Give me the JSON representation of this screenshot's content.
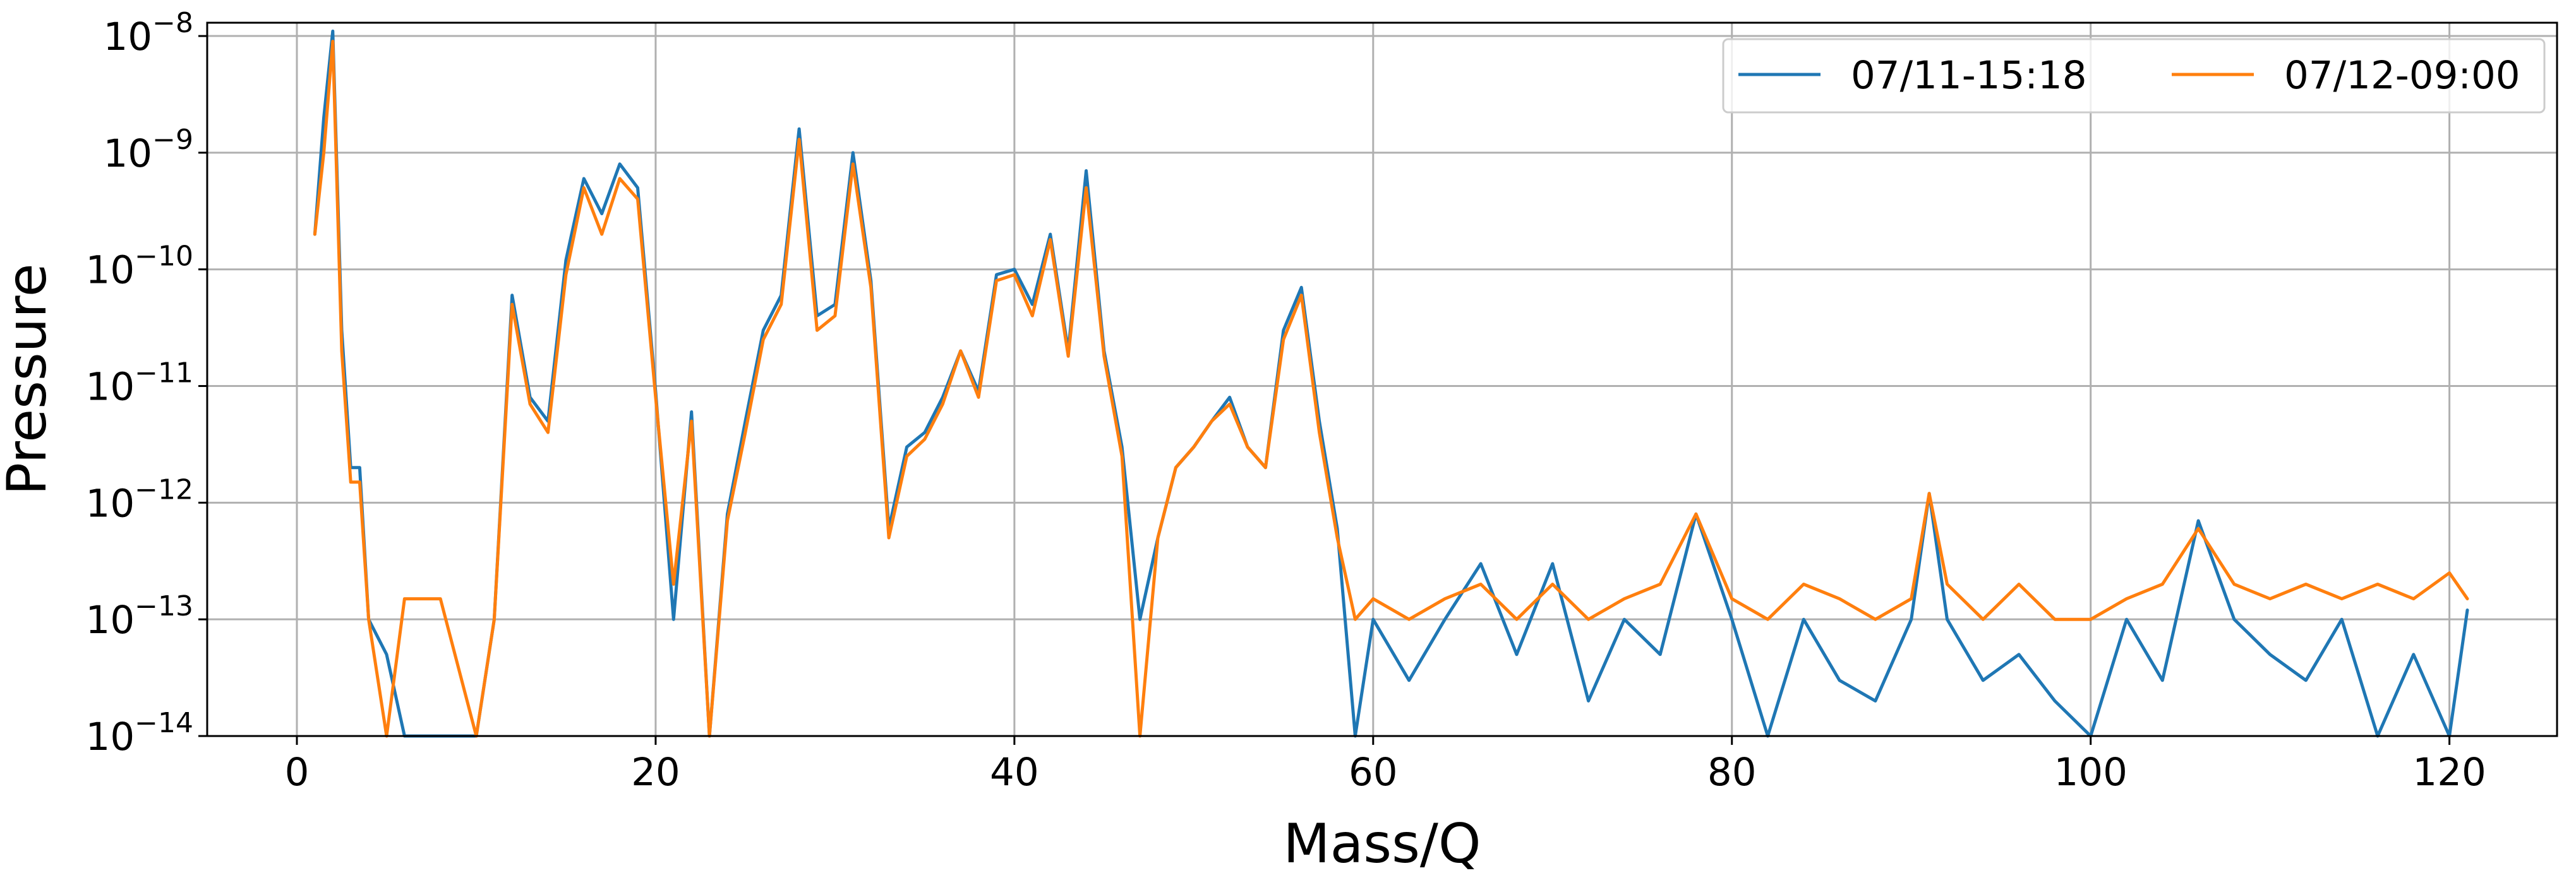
{
  "chart_data": {
    "type": "line",
    "title": "",
    "xlabel": "Mass/Q",
    "ylabel": "Pressure",
    "yscale": "log",
    "xlim": [
      -5,
      126
    ],
    "ylim": [
      1e-14,
      1.3e-08
    ],
    "grid": true,
    "legend_position": "top-right",
    "x_ticks": [
      0,
      20,
      40,
      60,
      80,
      100,
      120
    ],
    "x_tick_labels": [
      "0",
      "20",
      "40",
      "60",
      "80",
      "100",
      "120"
    ],
    "y_ticks": [
      1e-14,
      1e-13,
      1e-12,
      1e-11,
      1e-10,
      1e-09,
      1e-08
    ],
    "y_tick_labels": [
      {
        "base": "10",
        "exp": "−14"
      },
      {
        "base": "10",
        "exp": "−13"
      },
      {
        "base": "10",
        "exp": "−12"
      },
      {
        "base": "10",
        "exp": "−11"
      },
      {
        "base": "10",
        "exp": "−10"
      },
      {
        "base": "10",
        "exp": "−9"
      },
      {
        "base": "10",
        "exp": "−8"
      }
    ],
    "series": [
      {
        "name": "07/11-15:18",
        "color": "#1f77b4",
        "x": [
          1,
          1.5,
          2,
          2.5,
          3,
          3.5,
          4,
          5,
          6,
          8,
          10,
          11,
          12,
          13,
          14,
          15,
          16,
          17,
          18,
          19,
          20,
          21,
          22,
          23,
          24,
          25,
          26,
          27,
          28,
          29,
          30,
          31,
          32,
          33,
          34,
          35,
          36,
          37,
          38,
          39,
          40,
          41,
          42,
          43,
          44,
          45,
          46,
          47,
          48,
          49,
          50,
          51,
          52,
          53,
          54,
          55,
          56,
          57,
          58,
          59,
          60,
          62,
          64,
          66,
          68,
          70,
          72,
          74,
          76,
          78,
          80,
          82,
          84,
          86,
          88,
          90,
          91,
          92,
          94,
          96,
          98,
          100,
          102,
          104,
          106,
          108,
          110,
          112,
          114,
          116,
          118,
          120,
          121
        ],
        "values": [
          2e-10,
          2e-09,
          1.1e-08,
          3e-11,
          2e-12,
          2e-12,
          1e-13,
          5e-14,
          1e-14,
          1e-14,
          1e-14,
          1e-13,
          6e-11,
          8e-12,
          5e-12,
          1.2e-10,
          6e-10,
          3e-10,
          8e-10,
          5e-10,
          9e-12,
          1e-13,
          6e-12,
          1e-14,
          8e-13,
          5e-12,
          3e-11,
          6e-11,
          1.6e-09,
          4e-11,
          5e-11,
          1e-09,
          8e-11,
          6e-13,
          3e-12,
          4e-12,
          8e-12,
          2e-11,
          9e-12,
          9e-11,
          1e-10,
          5e-11,
          2e-10,
          2e-11,
          7e-10,
          2e-11,
          3e-12,
          1e-13,
          5e-13,
          2e-12,
          3e-12,
          5e-12,
          8e-12,
          3e-12,
          2e-12,
          3e-11,
          7e-11,
          5e-12,
          6e-13,
          1e-14,
          1e-13,
          3e-14,
          1e-13,
          3e-13,
          5e-14,
          3e-13,
          2e-14,
          1e-13,
          5e-14,
          8e-13,
          1e-13,
          1e-14,
          1e-13,
          3e-14,
          2e-14,
          1e-13,
          1.2e-12,
          1e-13,
          3e-14,
          5e-14,
          2e-14,
          1e-14,
          1e-13,
          3e-14,
          7e-13,
          1e-13,
          5e-14,
          3e-14,
          1e-13,
          1e-14,
          5e-14,
          1e-14,
          1.2e-13
        ]
      },
      {
        "name": "07/12-09:00",
        "color": "#ff7f0e",
        "x": [
          1,
          1.5,
          2,
          2.5,
          3,
          3.5,
          4,
          5,
          6,
          8,
          10,
          11,
          12,
          13,
          14,
          15,
          16,
          17,
          18,
          19,
          20,
          21,
          22,
          23,
          24,
          25,
          26,
          27,
          28,
          29,
          30,
          31,
          32,
          33,
          34,
          35,
          36,
          37,
          38,
          39,
          40,
          41,
          42,
          43,
          44,
          45,
          46,
          47,
          48,
          49,
          50,
          51,
          52,
          53,
          54,
          55,
          56,
          57,
          58,
          59,
          60,
          62,
          64,
          66,
          68,
          70,
          72,
          74,
          76,
          78,
          80,
          82,
          84,
          86,
          88,
          90,
          91,
          92,
          94,
          96,
          98,
          100,
          102,
          104,
          106,
          108,
          110,
          112,
          114,
          116,
          118,
          120,
          121
        ],
        "values": [
          2e-10,
          1e-09,
          9e-09,
          2e-11,
          1.5e-12,
          1.5e-12,
          1e-13,
          1e-14,
          1.5e-13,
          1.5e-13,
          1e-14,
          1e-13,
          5e-11,
          7e-12,
          4e-12,
          9e-11,
          5e-10,
          2e-10,
          6e-10,
          4e-10,
          8e-12,
          2e-13,
          5e-12,
          1e-14,
          7e-13,
          4e-12,
          2.5e-11,
          5e-11,
          1.3e-09,
          3e-11,
          4e-11,
          8e-10,
          7e-11,
          5e-13,
          2.5e-12,
          3.5e-12,
          7e-12,
          2e-11,
          8e-12,
          8e-11,
          9e-11,
          4e-11,
          1.8e-10,
          1.8e-11,
          5e-10,
          1.8e-11,
          2.5e-12,
          1e-14,
          5e-13,
          2e-12,
          3e-12,
          5e-12,
          7e-12,
          3e-12,
          2e-12,
          2.5e-11,
          6e-11,
          4e-12,
          5e-13,
          1e-13,
          1.5e-13,
          1e-13,
          1.5e-13,
          2e-13,
          1e-13,
          2e-13,
          1e-13,
          1.5e-13,
          2e-13,
          8e-13,
          1.5e-13,
          1e-13,
          2e-13,
          1.5e-13,
          1e-13,
          1.5e-13,
          1.2e-12,
          2e-13,
          1e-13,
          2e-13,
          1e-13,
          1e-13,
          1.5e-13,
          2e-13,
          6e-13,
          2e-13,
          1.5e-13,
          2e-13,
          1.5e-13,
          2e-13,
          1.5e-13,
          2.5e-13,
          1.5e-13
        ]
      }
    ]
  }
}
